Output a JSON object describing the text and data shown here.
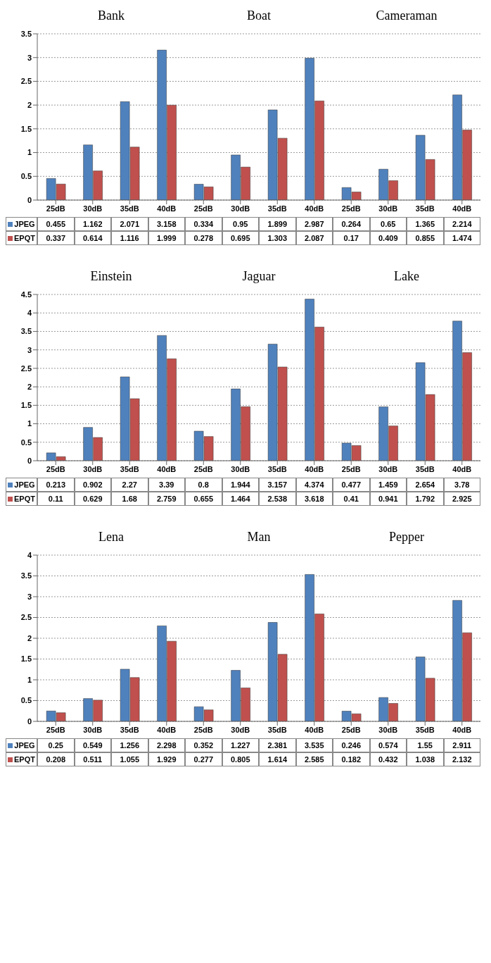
{
  "chart_data": [
    {
      "type": "bar",
      "annotations": [
        "Bank",
        "Boat",
        "Cameraman"
      ],
      "categories": [
        "25dB",
        "30dB",
        "35dB",
        "40dB",
        "25dB",
        "30dB",
        "35dB",
        "40dB",
        "25dB",
        "30dB",
        "35dB",
        "40dB"
      ],
      "series": [
        {
          "name": "JPEG",
          "color": "#4f81bd",
          "values": [
            0.455,
            1.162,
            2.071,
            3.158,
            0.334,
            0.95,
            1.899,
            2.987,
            0.264,
            0.65,
            1.365,
            2.214
          ]
        },
        {
          "name": "EPQT",
          "color": "#c0504d",
          "values": [
            0.337,
            0.614,
            1.116,
            1.999,
            0.278,
            0.695,
            1.303,
            2.087,
            0.17,
            0.409,
            0.855,
            1.474
          ]
        }
      ],
      "ylim": [
        0,
        3.5
      ],
      "yticks": [
        0,
        0.5,
        1,
        1.5,
        2,
        2.5,
        3,
        3.5
      ],
      "grid": "y",
      "legend": "bottom",
      "data_labels": true
    },
    {
      "type": "bar",
      "annotations": [
        "Einstein",
        "Jaguar",
        "Lake"
      ],
      "categories": [
        "25dB",
        "30dB",
        "35dB",
        "40dB",
        "25dB",
        "30dB",
        "35dB",
        "40dB",
        "25dB",
        "30dB",
        "35dB",
        "40dB"
      ],
      "series": [
        {
          "name": "JPEG",
          "color": "#4f81bd",
          "values": [
            0.213,
            0.902,
            2.27,
            3.39,
            0.8,
            1.944,
            3.157,
            4.374,
            0.477,
            1.459,
            2.654,
            3.78
          ]
        },
        {
          "name": "EPQT",
          "color": "#c0504d",
          "values": [
            0.11,
            0.629,
            1.68,
            2.759,
            0.655,
            1.464,
            2.538,
            3.618,
            0.41,
            0.941,
            1.792,
            2.925
          ]
        }
      ],
      "ylim": [
        0,
        4.5
      ],
      "yticks": [
        0,
        0.5,
        1,
        1.5,
        2,
        2.5,
        3,
        3.5,
        4,
        4.5
      ],
      "grid": "y",
      "legend": "bottom",
      "data_labels": true
    },
    {
      "type": "bar",
      "annotations": [
        "Lena",
        "Man",
        "Pepper"
      ],
      "categories": [
        "25dB",
        "30dB",
        "35dB",
        "40dB",
        "25dB",
        "30dB",
        "35dB",
        "40dB",
        "25dB",
        "30dB",
        "35dB",
        "40dB"
      ],
      "series": [
        {
          "name": "JPEG",
          "color": "#4f81bd",
          "values": [
            0.25,
            0.549,
            1.256,
            2.298,
            0.352,
            1.227,
            2.381,
            3.535,
            0.246,
            0.574,
            1.55,
            2.911
          ]
        },
        {
          "name": "EPQT",
          "color": "#c0504d",
          "values": [
            0.208,
            0.511,
            1.055,
            1.929,
            0.277,
            0.805,
            1.614,
            2.585,
            0.182,
            0.432,
            1.038,
            2.132
          ]
        }
      ],
      "ylim": [
        0,
        4
      ],
      "yticks": [
        0,
        0.5,
        1,
        1.5,
        2,
        2.5,
        3,
        3.5,
        4
      ],
      "grid": "y",
      "legend": "bottom",
      "data_labels": true
    }
  ]
}
